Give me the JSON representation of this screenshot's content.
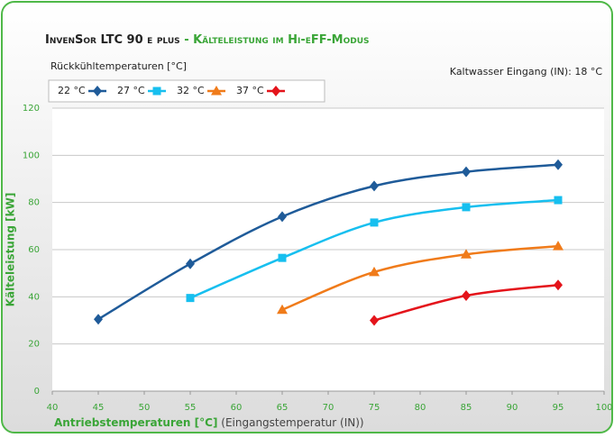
{
  "chart_data": {
    "type": "line",
    "title": "InvenSor LTC 90 e plus",
    "subtitle": "- Kälteleistung im Hi-eFF-Modus",
    "legend_title": "Rückkühltemperaturen [°C]",
    "annotation": "Kaltwasser Eingang (IN): 18 °C",
    "xlabel": "Antriebstemperaturen [°C]",
    "xlabel_note": "(Eingangstemperatur (IN))",
    "ylabel": "Kälteleistung [kW]",
    "x": [
      45,
      55,
      65,
      75,
      85,
      95
    ],
    "series": [
      {
        "name": "22 °C",
        "color": "#1f5b99",
        "marker": "diamond",
        "values": [
          30.5,
          54,
          74,
          87,
          93,
          96
        ]
      },
      {
        "name": "27 °C",
        "color": "#17bfef",
        "marker": "square",
        "values": [
          null,
          39.5,
          56.5,
          71.5,
          78,
          81
        ]
      },
      {
        "name": "32 °C",
        "color": "#f07b1a",
        "marker": "triangle",
        "values": [
          null,
          null,
          34.5,
          50.5,
          58,
          61.5
        ]
      },
      {
        "name": "37 °C",
        "color": "#e4141b",
        "marker": "diamond",
        "values": [
          null,
          null,
          null,
          30,
          40.5,
          45
        ]
      }
    ],
    "xlim": [
      40,
      100
    ],
    "xticks": [
      40,
      45,
      50,
      55,
      60,
      65,
      70,
      75,
      80,
      85,
      90,
      95,
      100
    ],
    "ylim": [
      0,
      120
    ],
    "yticks": [
      0,
      20,
      40,
      60,
      80,
      100,
      120
    ],
    "grid": true
  }
}
